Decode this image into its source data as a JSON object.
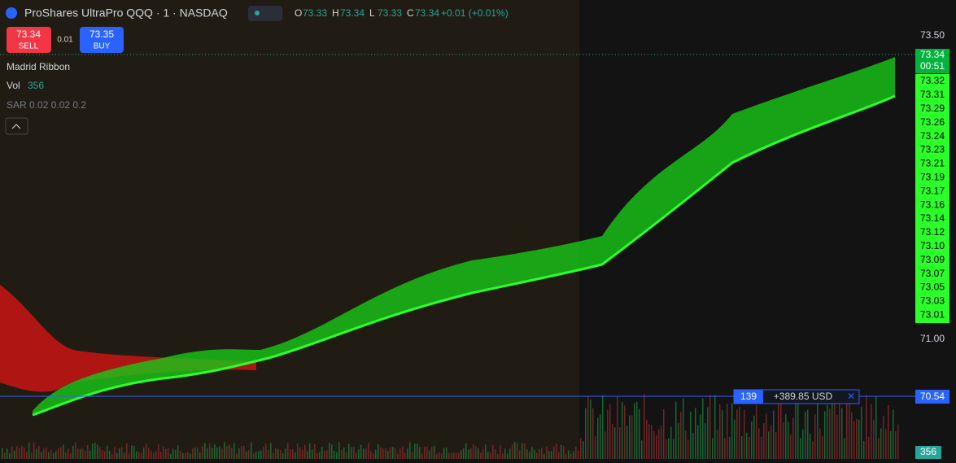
{
  "header": {
    "symbol": "ProShares UltraPro QQQ · 1 · NASDAQ",
    "ohlc": [
      {
        "key": "O",
        "value": "73.33"
      },
      {
        "key": "H",
        "value": "73.34"
      },
      {
        "key": "L",
        "value": "73.33"
      },
      {
        "key": "C",
        "value": "73.34"
      }
    ],
    "change": "+0.01 (+0.01%)"
  },
  "trade": {
    "sell_price": "73.34",
    "sell_label": "SELL",
    "spread": "0.01",
    "buy_price": "73.35",
    "buy_label": "BUY"
  },
  "indicators": {
    "ribbon": "Madrid Ribbon",
    "vol_label": "Vol",
    "vol_value": "356",
    "sar": "SAR 0.02 0.02 0.2"
  },
  "price_axis": {
    "top": "73.50",
    "current": "73.34",
    "countdown": "00:51",
    "levels": [
      "73.32",
      "73.31",
      "73.29",
      "73.26",
      "73.24",
      "73.23",
      "73.21",
      "73.19",
      "73.17",
      "73.16",
      "73.14",
      "73.12",
      "73.10",
      "73.09",
      "73.07",
      "73.05",
      "73.03",
      "73.01"
    ],
    "mid": "71.00",
    "position_line": "70.54",
    "volume": "356"
  },
  "position": {
    "qty": "139",
    "pnl": "+389.85 USD"
  }
}
